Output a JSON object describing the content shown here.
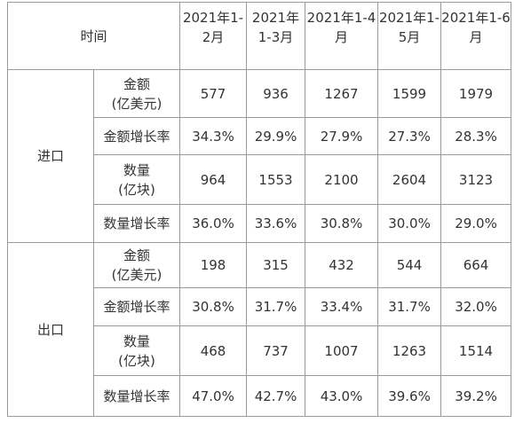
{
  "table": {
    "corner": "时间",
    "periods": [
      "2021年1-\n2月",
      "2021年\n1-3月",
      "2021年1-4\n月",
      "2021年1-\n5月",
      "2021年1-6\n月"
    ],
    "groups": [
      {
        "name": "进口",
        "rows": [
          {
            "metric": "金额\n(亿美元)",
            "values": [
              "577",
              "936",
              "1267",
              "1599",
              "1979"
            ]
          },
          {
            "metric": "金额增长率",
            "values": [
              "34.3%",
              "29.9%",
              "27.9%",
              "27.3%",
              "28.3%"
            ]
          },
          {
            "metric": "数量\n(亿块)",
            "values": [
              "964",
              "1553",
              "2100",
              "2604",
              "3123"
            ]
          },
          {
            "metric": "数量增长率",
            "values": [
              "36.0%",
              "33.6%",
              "30.8%",
              "30.0%",
              "29.0%"
            ]
          }
        ]
      },
      {
        "name": "出口",
        "rows": [
          {
            "metric": "金额\n(亿美元)",
            "values": [
              "198",
              "315",
              "432",
              "544",
              "664"
            ]
          },
          {
            "metric": "金额增长率",
            "values": [
              "30.8%",
              "31.7%",
              "33.4%",
              "31.7%",
              "32.0%"
            ]
          },
          {
            "metric": "数量\n(亿块)",
            "values": [
              "468",
              "737",
              "1007",
              "1263",
              "1514"
            ]
          },
          {
            "metric": "数量增长率",
            "values": [
              "47.0%",
              "42.7%",
              "43.0%",
              "39.6%",
              "39.2%"
            ]
          }
        ]
      }
    ]
  }
}
